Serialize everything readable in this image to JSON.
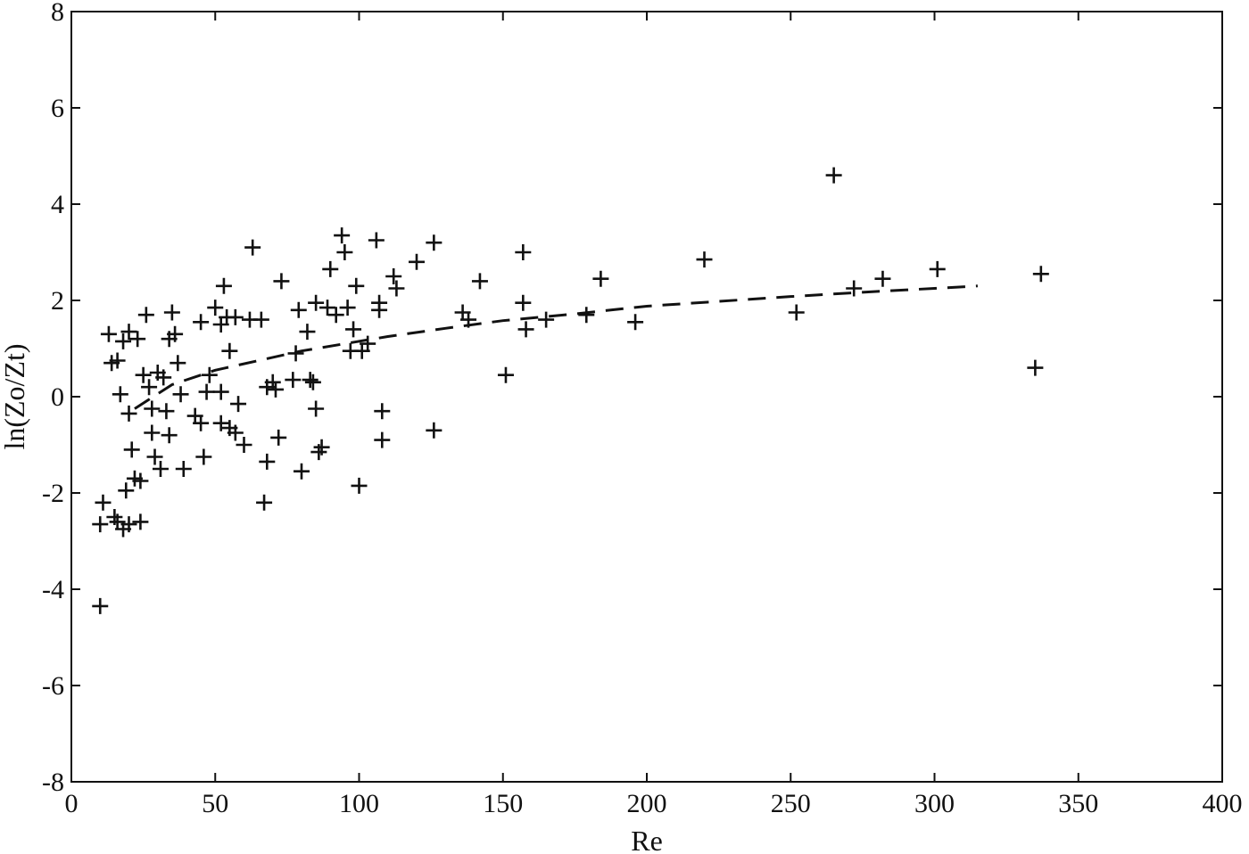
{
  "chart_data": {
    "type": "scatter",
    "xlabel": "Re",
    "ylabel": "ln(Zo/Zt)",
    "xlim": [
      0,
      400
    ],
    "ylim": [
      -8,
      8
    ],
    "xticks": [
      0,
      50,
      100,
      150,
      200,
      250,
      300,
      350,
      400
    ],
    "yticks": [
      -8,
      -6,
      -4,
      -2,
      0,
      2,
      4,
      6,
      8
    ],
    "xtick_labels": [
      "0",
      "50",
      "100",
      "150",
      "200",
      "250",
      "300",
      "350",
      "400"
    ],
    "ytick_labels": [
      "-8",
      "-6",
      "-4",
      "-2",
      "0",
      "2",
      "4",
      "6",
      "8"
    ],
    "grid": false,
    "marker": "+",
    "points": [
      [
        10,
        -4.35
      ],
      [
        11,
        -2.2
      ],
      [
        10,
        -2.65
      ],
      [
        15,
        -2.5
      ],
      [
        16,
        -2.6
      ],
      [
        18,
        -2.75
      ],
      [
        24,
        -2.6
      ],
      [
        20,
        -2.65
      ],
      [
        13,
        1.3
      ],
      [
        14,
        0.7
      ],
      [
        16,
        0.75
      ],
      [
        18,
        1.15
      ],
      [
        20,
        1.35
      ],
      [
        23,
        1.2
      ],
      [
        17,
        0.05
      ],
      [
        20,
        -0.35
      ],
      [
        21,
        -1.1
      ],
      [
        22,
        -1.7
      ],
      [
        24,
        -1.75
      ],
      [
        19,
        -1.95
      ],
      [
        26,
        1.7
      ],
      [
        27,
        0.2
      ],
      [
        28,
        -0.75
      ],
      [
        29,
        -1.25
      ],
      [
        31,
        -1.5
      ],
      [
        30,
        0.5
      ],
      [
        32,
        0.4
      ],
      [
        33,
        -0.3
      ],
      [
        34,
        1.2
      ],
      [
        35,
        1.75
      ],
      [
        36,
        1.3
      ],
      [
        37,
        0.7
      ],
      [
        38,
        0.05
      ],
      [
        39,
        -1.5
      ],
      [
        34,
        -0.8
      ],
      [
        28,
        -0.25
      ],
      [
        25,
        0.45
      ],
      [
        43,
        -0.4
      ],
      [
        45,
        -0.55
      ],
      [
        45,
        1.55
      ],
      [
        46,
        -1.25
      ],
      [
        47,
        0.1
      ],
      [
        48,
        0.45
      ],
      [
        50,
        1.85
      ],
      [
        52,
        0.1
      ],
      [
        52,
        1.5
      ],
      [
        52,
        -0.55
      ],
      [
        53,
        2.3
      ],
      [
        54,
        1.65
      ],
      [
        55,
        0.95
      ],
      [
        55,
        -0.65
      ],
      [
        57,
        -0.75
      ],
      [
        57,
        1.65
      ],
      [
        58,
        -0.15
      ],
      [
        60,
        -1.0
      ],
      [
        62,
        1.6
      ],
      [
        63,
        3.1
      ],
      [
        66,
        1.6
      ],
      [
        67,
        -2.2
      ],
      [
        68,
        -1.35
      ],
      [
        68,
        0.2
      ],
      [
        70,
        0.3
      ],
      [
        71,
        0.15
      ],
      [
        72,
        -0.85
      ],
      [
        73,
        2.4
      ],
      [
        77,
        0.35
      ],
      [
        78,
        0.9
      ],
      [
        79,
        1.8
      ],
      [
        80,
        -1.55
      ],
      [
        82,
        1.35
      ],
      [
        83,
        0.35
      ],
      [
        84,
        0.3
      ],
      [
        85,
        -0.25
      ],
      [
        85,
        1.95
      ],
      [
        86,
        -1.15
      ],
      [
        87,
        -1.05
      ],
      [
        89,
        1.85
      ],
      [
        90,
        2.65
      ],
      [
        92,
        1.7
      ],
      [
        94,
        3.35
      ],
      [
        95,
        3.0
      ],
      [
        96,
        1.85
      ],
      [
        97,
        0.95
      ],
      [
        98,
        1.4
      ],
      [
        99,
        2.3
      ],
      [
        100,
        -1.85
      ],
      [
        101,
        0.95
      ],
      [
        103,
        1.1
      ],
      [
        106,
        3.25
      ],
      [
        107,
        1.95
      ],
      [
        107,
        1.8
      ],
      [
        108,
        -0.3
      ],
      [
        108,
        -0.9
      ],
      [
        112,
        2.5
      ],
      [
        113,
        2.25
      ],
      [
        120,
        2.8
      ],
      [
        126,
        3.2
      ],
      [
        126,
        -0.7
      ],
      [
        136,
        1.75
      ],
      [
        138,
        1.6
      ],
      [
        142,
        2.4
      ],
      [
        151,
        0.45
      ],
      [
        157,
        3.0
      ],
      [
        157,
        1.95
      ],
      [
        158,
        1.4
      ],
      [
        165,
        1.6
      ],
      [
        179,
        1.7
      ],
      [
        184,
        2.45
      ],
      [
        196,
        1.55
      ],
      [
        220,
        2.85
      ],
      [
        252,
        1.75
      ],
      [
        265,
        4.6
      ],
      [
        272,
        2.25
      ],
      [
        282,
        2.45
      ],
      [
        301,
        2.65
      ],
      [
        335,
        0.6
      ],
      [
        337,
        2.55
      ]
    ],
    "fit_line": {
      "style": "dashed",
      "x": [
        22,
        35,
        50,
        65,
        80,
        95,
        110,
        130,
        150,
        175,
        200,
        225,
        250,
        275,
        300,
        315
      ],
      "y": [
        -0.25,
        0.25,
        0.55,
        0.75,
        0.95,
        1.1,
        1.25,
        1.42,
        1.58,
        1.72,
        1.88,
        1.98,
        2.08,
        2.17,
        2.25,
        2.3
      ]
    }
  }
}
